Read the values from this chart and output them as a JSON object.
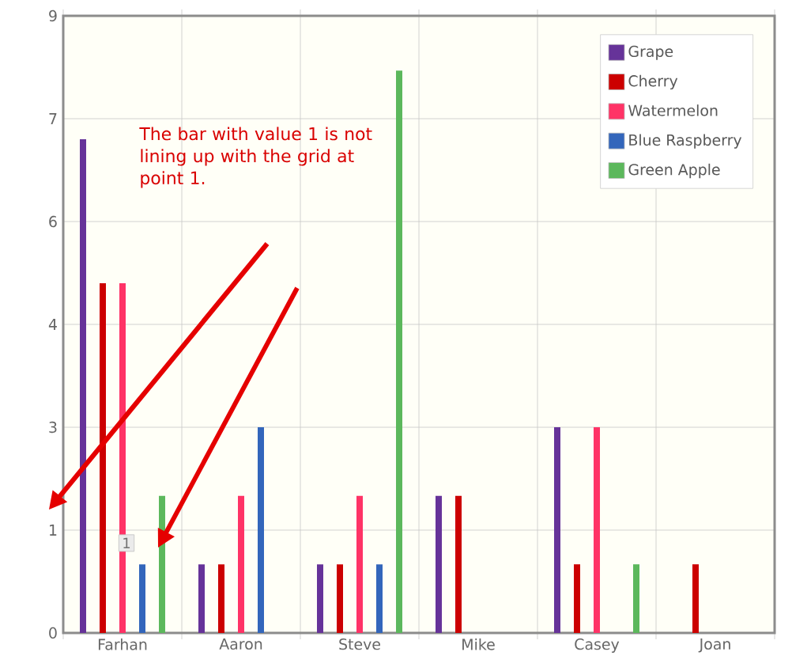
{
  "chart_data": {
    "type": "bar",
    "categories": [
      "Farhan",
      "Aaron",
      "Steve",
      "Mike",
      "Casey",
      "Joan"
    ],
    "series": [
      {
        "name": "Grape",
        "color": "#663399",
        "values": [
          7.2,
          1,
          1,
          2,
          3,
          null
        ]
      },
      {
        "name": "Cherry",
        "color": "#cc0000",
        "values": [
          5.1,
          1,
          1,
          2,
          1,
          1
        ]
      },
      {
        "name": "Watermelon",
        "color": "#ff3366",
        "values": [
          5.1,
          2,
          2,
          null,
          3,
          null
        ]
      },
      {
        "name": "Blue Raspberry",
        "color": "#3366bb",
        "values": [
          1,
          3,
          1,
          null,
          null,
          null
        ],
        "value_labels": [
          "1",
          null,
          null,
          null,
          null,
          null
        ]
      },
      {
        "name": "Green Apple",
        "color": "#5cb85c",
        "values": [
          2,
          null,
          8.2,
          null,
          1,
          null
        ]
      }
    ],
    "ylim": [
      0,
      9
    ],
    "yticks": [
      0,
      {
        "value": 1.5,
        "label": "1"
      },
      3,
      {
        "value": 4.5,
        "label": "4"
      },
      6,
      {
        "value": 7.5,
        "label": "7"
      },
      9
    ],
    "grid": true,
    "legend": "top right",
    "annotations": [
      "The bar with value 1 is not lining up with the grid at point 1."
    ]
  }
}
